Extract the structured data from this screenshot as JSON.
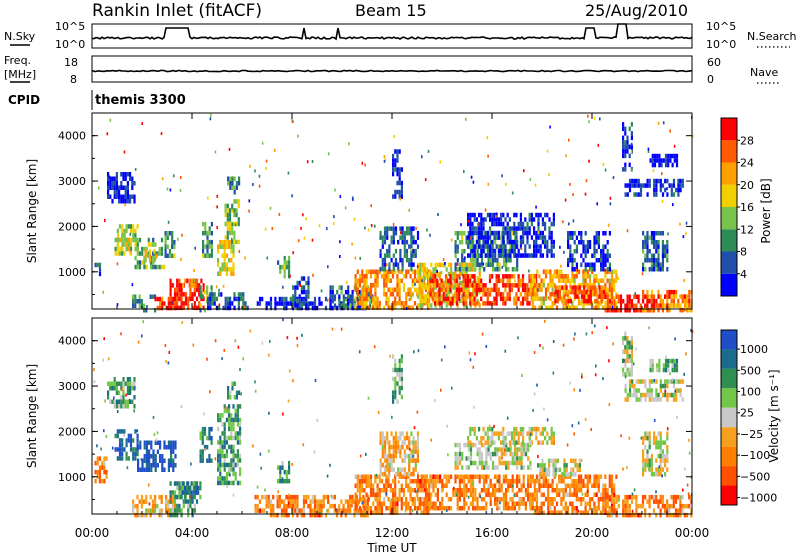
{
  "header": {
    "station": "Rankin Inlet (fitACF)",
    "beam": "Beam 15",
    "date": "25/Aug/2010"
  },
  "panels": {
    "nsky": {
      "left_label": "N.Sky",
      "right_label": "N.Search",
      "ticks_left": [
        "10^5",
        "10^0"
      ],
      "ticks_right": [
        "10^5",
        "10^0"
      ]
    },
    "freq": {
      "left_label_1": "Freq.",
      "left_label_2": "[MHz]",
      "right_label": "Nave",
      "ticks_left": [
        "18",
        "8"
      ],
      "ticks_right": [
        "60",
        "0"
      ]
    },
    "cpid": {
      "label": "CPID",
      "value": "themis 3300"
    }
  },
  "x_axis": {
    "label": "Time UT",
    "ticks": [
      "00:00",
      "04:00",
      "08:00",
      "12:00",
      "16:00",
      "20:00",
      "00:00"
    ]
  },
  "colors": {
    "power": [
      "#0000ff",
      "#1f4fa8",
      "#2e8b57",
      "#79c34a",
      "#f2d000",
      "#ff9f00",
      "#ff5a00",
      "#ff0000"
    ],
    "velocity": [
      "#1f4ec8",
      "#1b6c8a",
      "#2f8f4f",
      "#72c648",
      "#c8c8c8",
      "#f7a01e",
      "#ff8000",
      "#ff5000",
      "#ff0000"
    ]
  },
  "chart_data": [
    {
      "type": "heatmap",
      "name": "power",
      "ylabel": "Slant Range [km]",
      "xlabel": "",
      "x_range_hours": [
        0,
        24
      ],
      "ylim": [
        180,
        4500
      ],
      "yticks": [
        1000,
        2000,
        3000,
        4000
      ],
      "colorbar": {
        "label": "Power [dB]",
        "ticks": [
          "4",
          "8",
          "12",
          "16",
          "20",
          "24",
          "28"
        ],
        "range": [
          0,
          32
        ]
      },
      "regions": [
        {
          "t0": 0.1,
          "t1": 0.3,
          "r0": 950,
          "r1": 1300,
          "level": 0.2
        },
        {
          "t0": 0.9,
          "t1": 1.8,
          "r0": 1400,
          "r1": 2050,
          "level": 0.45
        },
        {
          "t0": 1.0,
          "t1": 1.5,
          "r0": 1550,
          "r1": 1850,
          "level": 0.55
        },
        {
          "t0": 1.7,
          "t1": 2.9,
          "r0": 1100,
          "r1": 1750,
          "level": 0.4
        },
        {
          "t0": 2.1,
          "t1": 2.6,
          "r0": 1300,
          "r1": 1500,
          "level": 0.6
        },
        {
          "t0": 2.9,
          "t1": 3.3,
          "r0": 1350,
          "r1": 1900,
          "level": 0.35
        },
        {
          "t0": 0.6,
          "t1": 1.7,
          "r0": 2550,
          "r1": 3200,
          "level": 0.08
        },
        {
          "t0": 1.6,
          "t1": 2.5,
          "r0": 200,
          "r1": 500,
          "level": 0.3
        },
        {
          "t0": 2.5,
          "t1": 3.3,
          "r0": 200,
          "r1": 450,
          "level": 0.85
        },
        {
          "t0": 3.1,
          "t1": 4.5,
          "r0": 200,
          "r1": 850,
          "level": 0.95
        },
        {
          "t0": 3.6,
          "t1": 4.2,
          "r0": 700,
          "r1": 850,
          "level": 0.8
        },
        {
          "t0": 4.3,
          "t1": 4.8,
          "r0": 200,
          "r1": 700,
          "level": 0.4
        },
        {
          "t0": 4.4,
          "t1": 4.8,
          "r0": 1400,
          "r1": 2100,
          "level": 0.35
        },
        {
          "t0": 5.0,
          "t1": 5.7,
          "r0": 1000,
          "r1": 1700,
          "level": 0.55
        },
        {
          "t0": 5.3,
          "t1": 5.9,
          "r0": 1700,
          "r1": 2600,
          "level": 0.45
        },
        {
          "t0": 5.4,
          "t1": 5.9,
          "r0": 2750,
          "r1": 3100,
          "level": 0.3
        },
        {
          "t0": 4.6,
          "t1": 6.2,
          "r0": 200,
          "r1": 550,
          "level": 0.2
        },
        {
          "t0": 7.4,
          "t1": 7.9,
          "r0": 900,
          "r1": 1350,
          "level": 0.35
        },
        {
          "t0": 6.5,
          "t1": 11.0,
          "r0": 200,
          "r1": 450,
          "level": 0.1
        },
        {
          "t0": 8.0,
          "t1": 8.7,
          "r0": 300,
          "r1": 900,
          "level": 0.2
        },
        {
          "t0": 9.5,
          "t1": 11.2,
          "r0": 300,
          "r1": 700,
          "level": 0.25
        },
        {
          "t0": 10.5,
          "t1": 13.5,
          "r0": 250,
          "r1": 1050,
          "level": 0.7
        },
        {
          "t0": 11.5,
          "t1": 13.0,
          "r0": 1100,
          "r1": 2000,
          "level": 0.2
        },
        {
          "t0": 12.0,
          "t1": 12.4,
          "r0": 2700,
          "r1": 3700,
          "level": 0.08
        },
        {
          "t0": 13.0,
          "t1": 15.5,
          "r0": 300,
          "r1": 1200,
          "level": 0.55
        },
        {
          "t0": 13.5,
          "t1": 17.8,
          "r0": 350,
          "r1": 950,
          "level": 0.85
        },
        {
          "t0": 14.5,
          "t1": 17.0,
          "r0": 1100,
          "r1": 1900,
          "level": 0.35
        },
        {
          "t0": 15.0,
          "t1": 18.5,
          "r0": 1400,
          "r1": 2300,
          "level": 0.1
        },
        {
          "t0": 17.5,
          "t1": 21.0,
          "r0": 250,
          "r1": 1050,
          "level": 0.65
        },
        {
          "t0": 18.5,
          "t1": 20.5,
          "r0": 350,
          "r1": 700,
          "level": 0.85
        },
        {
          "t0": 19.0,
          "t1": 20.7,
          "r0": 1100,
          "r1": 1900,
          "level": 0.12
        },
        {
          "t0": 20.5,
          "t1": 22.5,
          "r0": 200,
          "r1": 500,
          "level": 0.95
        },
        {
          "t0": 22.0,
          "t1": 24.0,
          "r0": 200,
          "r1": 600,
          "level": 0.75
        },
        {
          "t0": 21.3,
          "t1": 23.6,
          "r0": 2750,
          "r1": 3050,
          "level": 0.1
        },
        {
          "t0": 22.0,
          "t1": 23.0,
          "r0": 1050,
          "r1": 1900,
          "level": 0.25
        },
        {
          "t0": 21.2,
          "t1": 21.6,
          "r0": 3300,
          "r1": 4300,
          "level": 0.1
        },
        {
          "t0": 22.3,
          "t1": 23.4,
          "r0": 3400,
          "r1": 3600,
          "level": 0.05
        }
      ]
    },
    {
      "type": "heatmap",
      "name": "velocity",
      "ylabel": "Slant Range [km]",
      "xlabel": "Time UT",
      "x_range_hours": [
        0,
        24
      ],
      "ylim": [
        180,
        4500
      ],
      "yticks": [
        1000,
        2000,
        3000,
        4000
      ],
      "colorbar": {
        "label": "Velocity [m s⁻¹]",
        "ticks": [
          "1000",
          "500",
          "100",
          "25",
          "−25",
          "−100",
          "−500",
          "−1000"
        ],
        "range": [
          1000,
          -1000
        ]
      },
      "regions": [
        {
          "t0": 0.1,
          "t1": 0.6,
          "r0": 950,
          "r1": 1450,
          "level": 0.7
        },
        {
          "t0": 0.9,
          "t1": 1.8,
          "r0": 1400,
          "r1": 2050,
          "level": 0.1
        },
        {
          "t0": 1.8,
          "t1": 3.3,
          "r0": 1200,
          "r1": 1800,
          "level": 0.05
        },
        {
          "t0": 0.6,
          "t1": 1.7,
          "r0": 2550,
          "r1": 3200,
          "level": 0.3
        },
        {
          "t0": 1.6,
          "t1": 3.3,
          "r0": 200,
          "r1": 600,
          "level": 0.6
        },
        {
          "t0": 3.1,
          "t1": 4.2,
          "r0": 200,
          "r1": 900,
          "level": 0.3
        },
        {
          "t0": 3.5,
          "t1": 4.3,
          "r0": 600,
          "r1": 900,
          "level": 0.2
        },
        {
          "t0": 4.3,
          "t1": 4.8,
          "r0": 1400,
          "r1": 2100,
          "level": 0.25
        },
        {
          "t0": 5.0,
          "t1": 5.9,
          "r0": 900,
          "r1": 2600,
          "level": 0.3
        },
        {
          "t0": 5.4,
          "t1": 5.9,
          "r0": 2750,
          "r1": 3100,
          "level": 0.3
        },
        {
          "t0": 6.5,
          "t1": 11.0,
          "r0": 200,
          "r1": 600,
          "level": 0.72
        },
        {
          "t0": 7.4,
          "t1": 7.9,
          "r0": 900,
          "r1": 1350,
          "level": 0.3
        },
        {
          "t0": 10.5,
          "t1": 13.5,
          "r0": 250,
          "r1": 1050,
          "level": 0.72
        },
        {
          "t0": 11.5,
          "t1": 13.0,
          "r0": 1100,
          "r1": 2000,
          "level": 0.6
        },
        {
          "t0": 12.0,
          "t1": 12.4,
          "r0": 2700,
          "r1": 3700,
          "level": 0.35
        },
        {
          "t0": 13.0,
          "t1": 17.8,
          "r0": 300,
          "r1": 1050,
          "level": 0.72
        },
        {
          "t0": 14.5,
          "t1": 17.5,
          "r0": 1200,
          "r1": 1750,
          "level": 0.48
        },
        {
          "t0": 15.0,
          "t1": 18.5,
          "r0": 1750,
          "r1": 2100,
          "level": 0.5
        },
        {
          "t0": 17.5,
          "t1": 21.0,
          "r0": 250,
          "r1": 1050,
          "level": 0.72
        },
        {
          "t0": 17.8,
          "t1": 19.5,
          "r0": 1100,
          "r1": 1400,
          "level": 0.48
        },
        {
          "t0": 20.5,
          "t1": 24.0,
          "r0": 200,
          "r1": 600,
          "level": 0.72
        },
        {
          "t0": 21.3,
          "t1": 23.6,
          "r0": 2750,
          "r1": 3150,
          "level": 0.48
        },
        {
          "t0": 22.0,
          "t1": 23.0,
          "r0": 1050,
          "r1": 2000,
          "level": 0.48
        },
        {
          "t0": 21.2,
          "t1": 21.6,
          "r0": 3300,
          "r1": 4300,
          "level": 0.45
        },
        {
          "t0": 22.3,
          "t1": 23.4,
          "r0": 3400,
          "r1": 3600,
          "level": 0.35
        }
      ]
    }
  ]
}
